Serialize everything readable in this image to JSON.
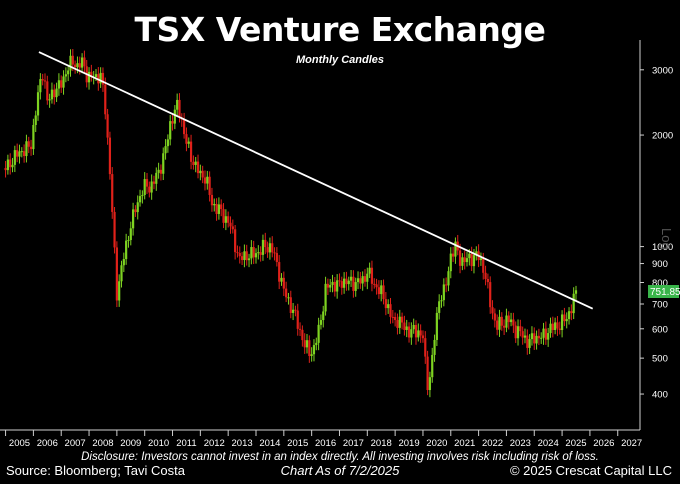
{
  "header": {
    "title": "TSX Venture Exchange",
    "subtitle": "Monthly Candles"
  },
  "footer": {
    "disclosure": "Disclosure: Investors cannot invest in an index directly. All investing involves risk including risk of loss.",
    "source": "Source: Bloomberg; Tavi Costa",
    "chart_as_of": "Chart As of 7/2/2025",
    "copyright": "© 2025 Crescat Capital LLC"
  },
  "colors": {
    "background": "#000000",
    "up_candle": "#7ed321",
    "down_candle": "#e0211a",
    "trendline": "#ffffff",
    "last_price_badge": "#39b54a"
  },
  "chart_data": {
    "type": "candlestick",
    "title": "TSX Venture Exchange",
    "subtitle": "Monthly Candles",
    "y_scale": "log",
    "ylabel": "Log",
    "ylim": [
      330,
      3500
    ],
    "xlim": [
      2004.8,
      2027.8
    ],
    "y_ticks": [
      400,
      500,
      600,
      700,
      800,
      900,
      1000,
      2000,
      3000
    ],
    "x_ticks": [
      "2005",
      "2006",
      "2007",
      "2008",
      "2009",
      "2010",
      "2011",
      "2012",
      "2013",
      "2014",
      "2015",
      "2016",
      "2017",
      "2018",
      "2019",
      "2020",
      "2021",
      "2022",
      "2023",
      "2024",
      "2025",
      "2026",
      "2027"
    ],
    "last_price": "751.85",
    "trendline": {
      "x": [
        2006.2,
        2026.1
      ],
      "y": [
        3350,
        680
      ]
    },
    "series": [
      {
        "values": [
          [
            2005.0,
            1630
          ],
          [
            2005.5,
            1800
          ],
          [
            2005.9,
            1860
          ],
          [
            2006.2,
            2650
          ],
          [
            2006.35,
            3010
          ],
          [
            2006.5,
            2450
          ],
          [
            2006.75,
            2650
          ],
          [
            2006.95,
            2700
          ],
          [
            2007.2,
            3000
          ],
          [
            2007.45,
            3200
          ],
          [
            2007.55,
            3050
          ],
          [
            2007.8,
            3150
          ],
          [
            2007.95,
            2850
          ],
          [
            2008.2,
            2880
          ],
          [
            2008.4,
            2900
          ],
          [
            2008.55,
            2550
          ],
          [
            2008.75,
            1600
          ],
          [
            2008.9,
            1000
          ],
          [
            2009.0,
            750
          ],
          [
            2009.2,
            900
          ],
          [
            2009.5,
            1150
          ],
          [
            2009.8,
            1350
          ],
          [
            2009.95,
            1450
          ],
          [
            2010.2,
            1450
          ],
          [
            2010.5,
            1580
          ],
          [
            2010.8,
            1900
          ],
          [
            2010.95,
            2200
          ],
          [
            2011.15,
            2400
          ],
          [
            2011.3,
            2250
          ],
          [
            2011.45,
            1980
          ],
          [
            2011.65,
            1750
          ],
          [
            2011.85,
            1650
          ],
          [
            2012.0,
            1550
          ],
          [
            2012.2,
            1550
          ],
          [
            2012.4,
            1300
          ],
          [
            2012.6,
            1280
          ],
          [
            2012.85,
            1200
          ],
          [
            2013.0,
            1180
          ],
          [
            2013.2,
            1050
          ],
          [
            2013.4,
            920
          ],
          [
            2013.65,
            950
          ],
          [
            2013.9,
            950
          ],
          [
            2014.1,
            970
          ],
          [
            2014.3,
            1000
          ],
          [
            2014.55,
            1000
          ],
          [
            2014.8,
            870
          ],
          [
            2015.0,
            760
          ],
          [
            2015.3,
            680
          ],
          [
            2015.5,
            620
          ],
          [
            2015.75,
            540
          ],
          [
            2015.95,
            520
          ],
          [
            2016.1,
            530
          ],
          [
            2016.3,
            620
          ],
          [
            2016.5,
            760
          ],
          [
            2016.7,
            800
          ],
          [
            2016.95,
            780
          ],
          [
            2017.1,
            810
          ],
          [
            2017.35,
            800
          ],
          [
            2017.6,
            800
          ],
          [
            2017.85,
            810
          ],
          [
            2018.0,
            860
          ],
          [
            2018.2,
            800
          ],
          [
            2018.45,
            760
          ],
          [
            2018.7,
            700
          ],
          [
            2018.95,
            620
          ],
          [
            2019.1,
            640
          ],
          [
            2019.35,
            600
          ],
          [
            2019.6,
            590
          ],
          [
            2019.85,
            590
          ],
          [
            2020.0,
            570
          ],
          [
            2020.15,
            420
          ],
          [
            2020.3,
            470
          ],
          [
            2020.45,
            600
          ],
          [
            2020.6,
            740
          ],
          [
            2020.8,
            760
          ],
          [
            2021.0,
            950
          ],
          [
            2021.15,
            1000
          ],
          [
            2021.35,
            920
          ],
          [
            2021.6,
            920
          ],
          [
            2021.8,
            940
          ],
          [
            2021.95,
            950
          ],
          [
            2022.2,
            870
          ],
          [
            2022.45,
            680
          ],
          [
            2022.65,
            610
          ],
          [
            2022.85,
            620
          ],
          [
            2023.05,
            640
          ],
          [
            2023.3,
            600
          ],
          [
            2023.55,
            580
          ],
          [
            2023.8,
            550
          ],
          [
            2024.0,
            570
          ],
          [
            2024.3,
            570
          ],
          [
            2024.55,
            600
          ],
          [
            2024.8,
            610
          ],
          [
            2024.95,
            620
          ],
          [
            2025.15,
            640
          ],
          [
            2025.35,
            690
          ],
          [
            2025.5,
            751.85
          ]
        ]
      }
    ]
  }
}
